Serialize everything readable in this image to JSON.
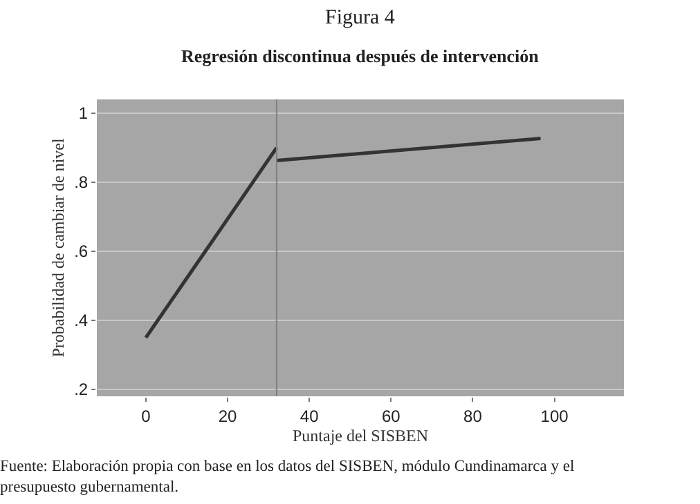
{
  "chart_data": {
    "type": "line",
    "title": "Figura 4",
    "subtitle": "Regresión discontinua después de intervención",
    "xlabel": "Puntaje del SISBEN",
    "ylabel": "Probabilidad de cambiar de nivel",
    "annotations": [
      "Fuente: Elaboración propia con base en los datos del SISBEN, módulo Cundinamarca y el presupuesto gubernamental."
    ],
    "series": [
      {
        "color": "#333333",
        "x": [
          0,
          32
        ],
        "values": [
          0.35,
          0.9
        ]
      },
      {
        "color": "#333333",
        "x": [
          32,
          96.6
        ],
        "values": [
          0.863,
          0.927
        ]
      }
    ],
    "xlim": [
      -12,
      117
    ],
    "ylim": [
      0.18,
      1.04
    ],
    "xticks": [
      0,
      20,
      40,
      60,
      80,
      100
    ],
    "yticks": [
      {
        "value": 0.2,
        "label": ".2"
      },
      {
        "value": 0.4,
        "label": ".4"
      },
      {
        "value": 0.6,
        "label": ".6"
      },
      {
        "value": 0.8,
        "label": ".8"
      },
      1
    ],
    "ref_lines": [
      {
        "axis": "x",
        "value": 32,
        "color": "#7f7f7f"
      }
    ],
    "grid": "y",
    "marker": "none",
    "line_style": "solid"
  }
}
